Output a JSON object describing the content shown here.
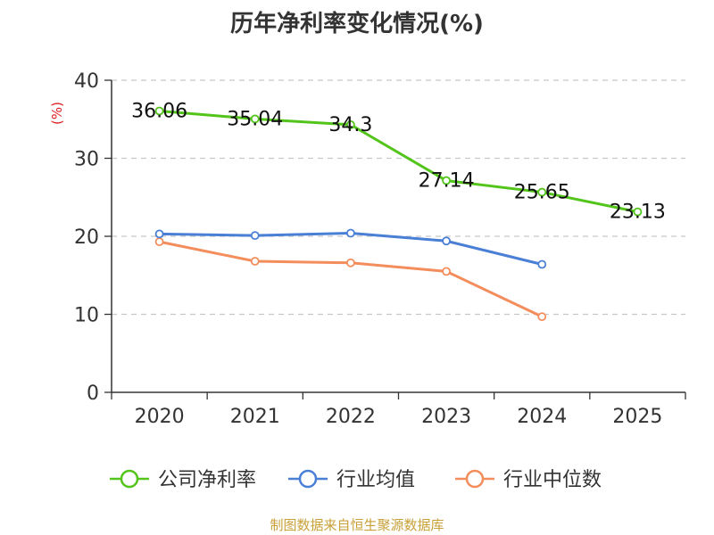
{
  "title": "历年净利率变化情况(%)",
  "source": "制图数据来自恒生聚源数据库",
  "chart_data": {
    "type": "line",
    "title": "历年净利率变化情况(%)",
    "ylabel": "(%)",
    "xlabel": "",
    "categories": [
      "2020",
      "2021",
      "2022",
      "2023",
      "2024",
      "2025"
    ],
    "ylim": [
      0,
      40
    ],
    "yticks": [
      0,
      10,
      20,
      30,
      40
    ],
    "grid": true,
    "legend_position": "bottom",
    "series": [
      {
        "name": "公司净利率",
        "color": "#52c41a",
        "values": [
          36.06,
          35.04,
          34.3,
          27.14,
          25.65,
          23.13
        ],
        "labels": [
          "36.06",
          "35.04",
          "34.3",
          "27.14",
          "25.65",
          "23.13"
        ]
      },
      {
        "name": "行业均值",
        "color": "#4a7fd6",
        "values": [
          20.3,
          20.1,
          20.4,
          19.4,
          16.4,
          null
        ],
        "labels": null
      },
      {
        "name": "行业中位数",
        "color": "#f48d5c",
        "values": [
          19.3,
          16.8,
          16.6,
          15.5,
          9.7,
          null
        ],
        "labels": null
      }
    ]
  }
}
